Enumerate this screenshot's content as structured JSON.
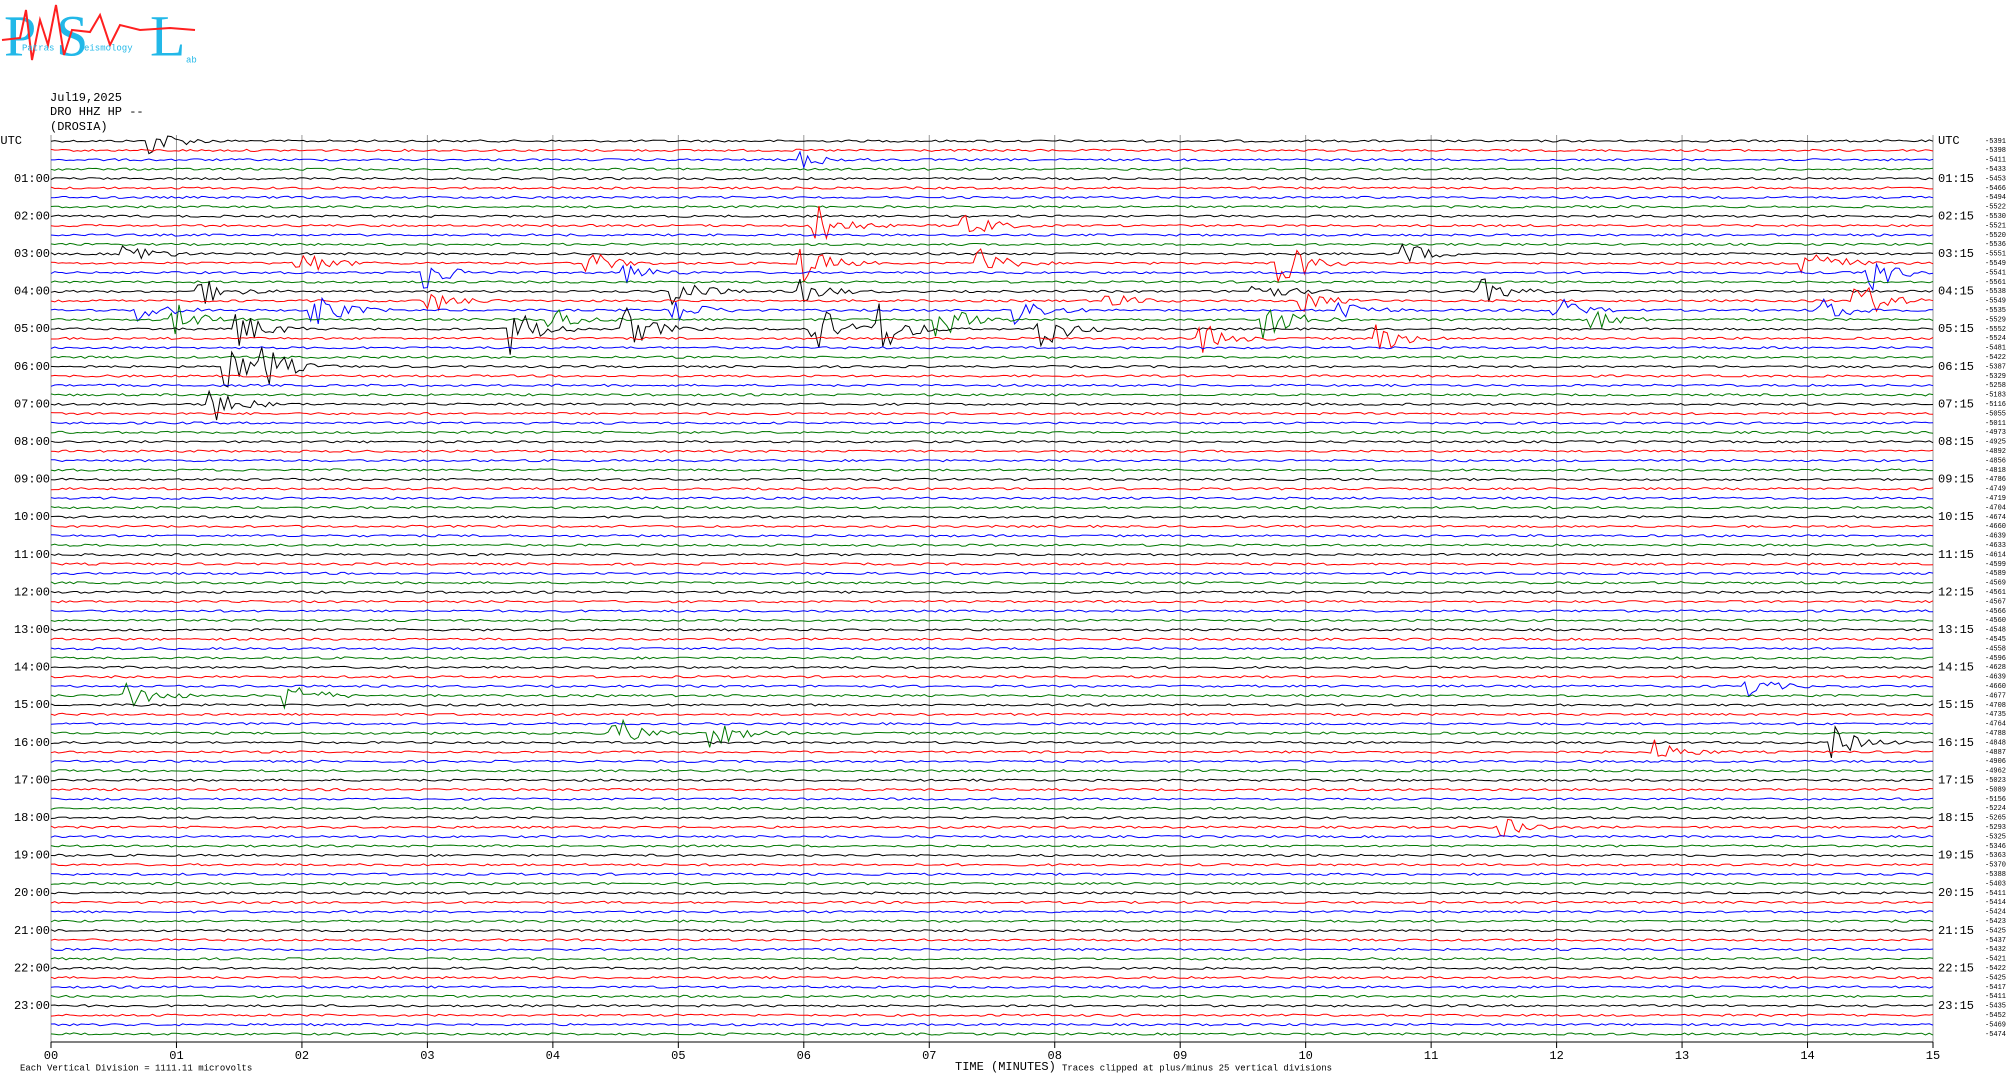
{
  "logo": {
    "letters": [
      "P",
      "S",
      "L"
    ],
    "words": [
      "Patras",
      "eismology",
      "ab"
    ]
  },
  "header": {
    "date": "Jul19,2025",
    "station": "DRO HHZ HP --",
    "site": "(DROSIA)"
  },
  "footer": {
    "scale_note": "Each Vertical Division = 1111.11 microvolts",
    "clip_note": "Traces clipped at plus/minus 25 vertical divisions"
  },
  "chart_data": {
    "type": "helicorder",
    "x_label": "TIME (MINUTES)",
    "xlim": [
      0,
      15
    ],
    "xticks": [
      {
        "value": 0,
        "label": "00"
      },
      {
        "value": 1,
        "label": "01"
      },
      {
        "value": 2,
        "label": "02"
      },
      {
        "value": 3,
        "label": "03"
      },
      {
        "value": 4,
        "label": "04"
      },
      {
        "value": 5,
        "label": "05"
      },
      {
        "value": 6,
        "label": "06"
      },
      {
        "value": 7,
        "label": "07"
      },
      {
        "value": 8,
        "label": "08"
      },
      {
        "value": 9,
        "label": "09"
      },
      {
        "value": 10,
        "label": "10"
      },
      {
        "value": 11,
        "label": "11"
      },
      {
        "value": 12,
        "label": "12"
      },
      {
        "value": 13,
        "label": "13"
      },
      {
        "value": 14,
        "label": "14"
      },
      {
        "value": 15,
        "label": "15"
      }
    ],
    "grid": true,
    "trace_colors": [
      "#000000",
      "#ff0000",
      "#0000ff",
      "#007700"
    ],
    "left_labels": [
      "UTC",
      "01:00",
      "02:00",
      "03:00",
      "04:00",
      "05:00",
      "06:00",
      "07:00",
      "08:00",
      "09:00",
      "10:00",
      "11:00",
      "12:00",
      "13:00",
      "14:00",
      "15:00",
      "16:00",
      "17:00",
      "18:00",
      "19:00",
      "20:00",
      "21:00",
      "22:00",
      "23:00"
    ],
    "right_labels": [
      "UTC",
      "01:15",
      "02:15",
      "03:15",
      "04:15",
      "05:15",
      "06:15",
      "07:15",
      "08:15",
      "09:15",
      "10:15",
      "11:15",
      "12:15",
      "13:15",
      "14:15",
      "15:15",
      "16:15",
      "17:15",
      "18:15",
      "19:15",
      "20:15",
      "21:15",
      "22:15",
      "23:15"
    ],
    "trace_offsets": [
      -5391,
      -5398,
      -5411,
      -5433,
      -5453,
      -5466,
      -5494,
      -5522,
      -5530,
      -5521,
      -5520,
      -5536,
      -5551,
      -5549,
      -5541,
      -5561,
      -5538,
      -5549,
      -5535,
      -5529,
      -5552,
      -5524,
      -5481,
      -5422,
      -5387,
      -5329,
      -5258,
      -5183,
      -5116,
      -5055,
      -5011,
      -4973,
      -4925,
      -4892,
      -4856,
      -4818,
      -4786,
      -4749,
      -4719,
      -4704,
      -4674,
      -4660,
      -4639,
      -4633,
      -4614,
      -4599,
      -4589,
      -4569,
      -4561,
      -4567,
      -4566,
      -4560,
      -4548,
      -4545,
      -4558,
      -4596,
      -4628,
      -4639,
      -4660,
      -4677,
      -4708,
      -4735,
      -4764,
      -4788,
      -4848,
      -4887,
      -4906,
      -4962,
      -5023,
      -5089,
      -5156,
      -5224,
      -5265,
      -5293,
      -5325,
      -5346,
      -5363,
      -5370,
      -5388,
      -5403,
      -5411,
      -5414,
      -5424,
      -5423,
      -5425,
      -5437,
      -5432,
      -5421,
      -5422,
      -5425,
      -5417,
      -5411,
      -5435,
      -5452,
      -5469,
      -5474
    ]
  }
}
